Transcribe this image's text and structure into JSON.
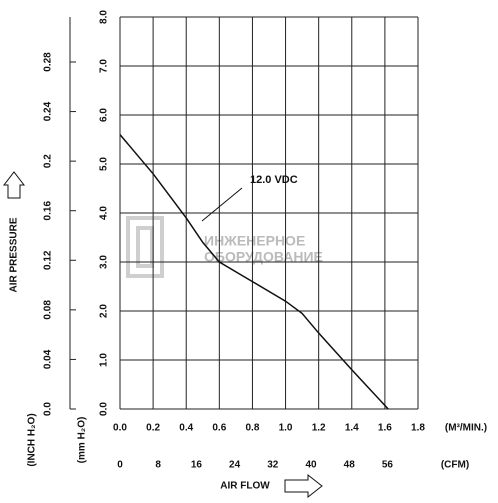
{
  "chart_data": {
    "type": "line",
    "x_label": "(M³/MIN.)",
    "x2_label": "(CFM)",
    "axis_title": "AIR FLOW",
    "y_title": "AIR PRESSURE",
    "y_label": "(mm H₂O)",
    "y2_label": "(INCH H₂O)",
    "watermark": [
      "ИНЖЕНЕРНОЕ",
      "ОБОРУДОВАНИЕ"
    ],
    "x": [
      0,
      0.2,
      0.4,
      0.5,
      0.6,
      0.8,
      1.0,
      1.1,
      1.2,
      1.4,
      1.62
    ],
    "series": [
      {
        "name": "12.0 VDC",
        "color": "#111111",
        "values": [
          5.6,
          4.8,
          3.9,
          3.4,
          3.0,
          2.6,
          2.2,
          1.95,
          1.55,
          0.8,
          0.0
        ]
      }
    ],
    "xlim": [
      0,
      1.8
    ],
    "xticks": [
      {
        "value": 0,
        "label": "0.0"
      },
      0.2,
      0.4,
      0.6,
      0.8,
      {
        "value": 1,
        "label": "1.0"
      },
      1.2,
      1.4,
      1.6,
      1.8
    ],
    "x2lim": [
      0,
      62.4
    ],
    "x2ticks": [
      0,
      8,
      16,
      24,
      32,
      40,
      48,
      56
    ],
    "ylim": [
      0,
      8
    ],
    "yticks": [
      {
        "value": 0,
        "label": "0.0"
      },
      {
        "value": 1,
        "label": "1.0"
      },
      {
        "value": 2,
        "label": "2.0"
      },
      {
        "value": 3,
        "label": "3.0"
      },
      {
        "value": 4,
        "label": "4.0"
      },
      {
        "value": 5,
        "label": "5.0"
      },
      {
        "value": 6,
        "label": "6.0"
      },
      {
        "value": 7,
        "label": "7.0"
      },
      {
        "value": 8,
        "label": "8.0"
      }
    ],
    "y2lim": [
      0,
      0.3163
    ],
    "y2ticks": [
      {
        "value": 0,
        "label": "0.0"
      },
      0.04,
      0.08,
      0.12,
      0.16,
      0.2,
      0.24,
      0.28
    ],
    "grid": true
  }
}
